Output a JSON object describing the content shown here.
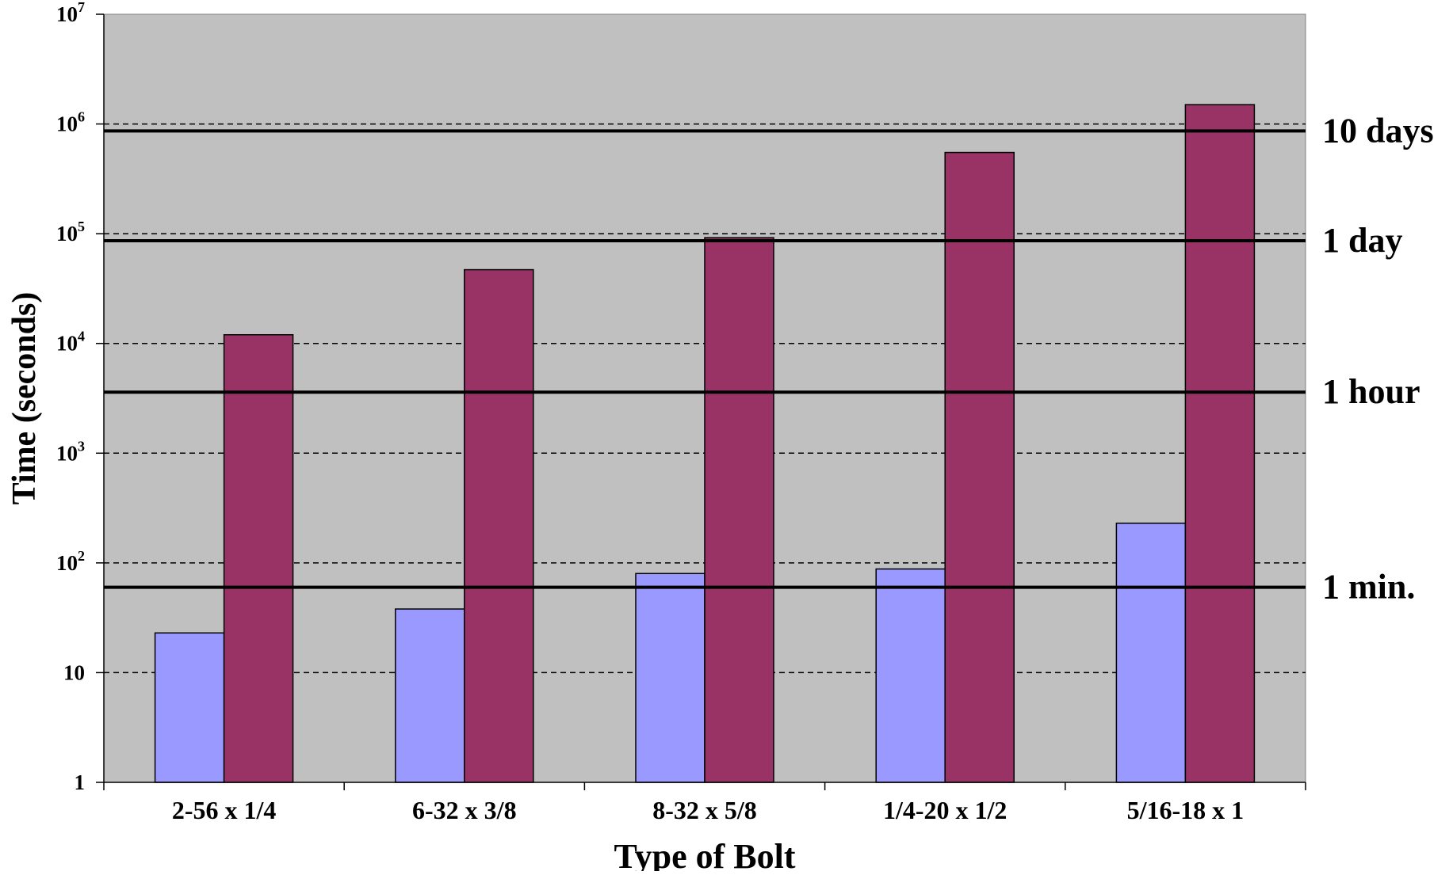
{
  "chart_data": {
    "type": "bar",
    "xlabel": "Type of Bolt",
    "ylabel": "Time (seconds)",
    "yscale": "log",
    "ylim": [
      1,
      10000000
    ],
    "yticks": [
      {
        "value": 1,
        "base": "1",
        "exp": ""
      },
      {
        "value": 10,
        "base": "10",
        "exp": ""
      },
      {
        "value": 100,
        "base": "10",
        "exp": "2"
      },
      {
        "value": 1000,
        "base": "10",
        "exp": "3"
      },
      {
        "value": 10000,
        "base": "10",
        "exp": "4"
      },
      {
        "value": 100000,
        "base": "10",
        "exp": "5"
      },
      {
        "value": 1000000,
        "base": "10",
        "exp": "6"
      },
      {
        "value": 10000000,
        "base": "10",
        "exp": "7"
      }
    ],
    "grid": "dashed at each power of ten",
    "categories": [
      "2-56 x 1/4",
      "6-32 x 3/8",
      "8-32 x 5/8",
      "1/4-20 x 1/2",
      "5/16-18 x 1"
    ],
    "series": [
      {
        "color": "#9999ff",
        "values": [
          23,
          38,
          80,
          88,
          230
        ]
      },
      {
        "color": "#993366",
        "values": [
          12000,
          47000,
          92000,
          550000,
          1500000
        ]
      }
    ],
    "reference_lines": [
      {
        "label": "1 min.",
        "value": 60
      },
      {
        "label": "1 hour",
        "value": 3600
      },
      {
        "label": "1 day",
        "value": 86400
      },
      {
        "label": "10 days",
        "value": 864000
      }
    ],
    "plot_background": "#c0c0c0"
  }
}
